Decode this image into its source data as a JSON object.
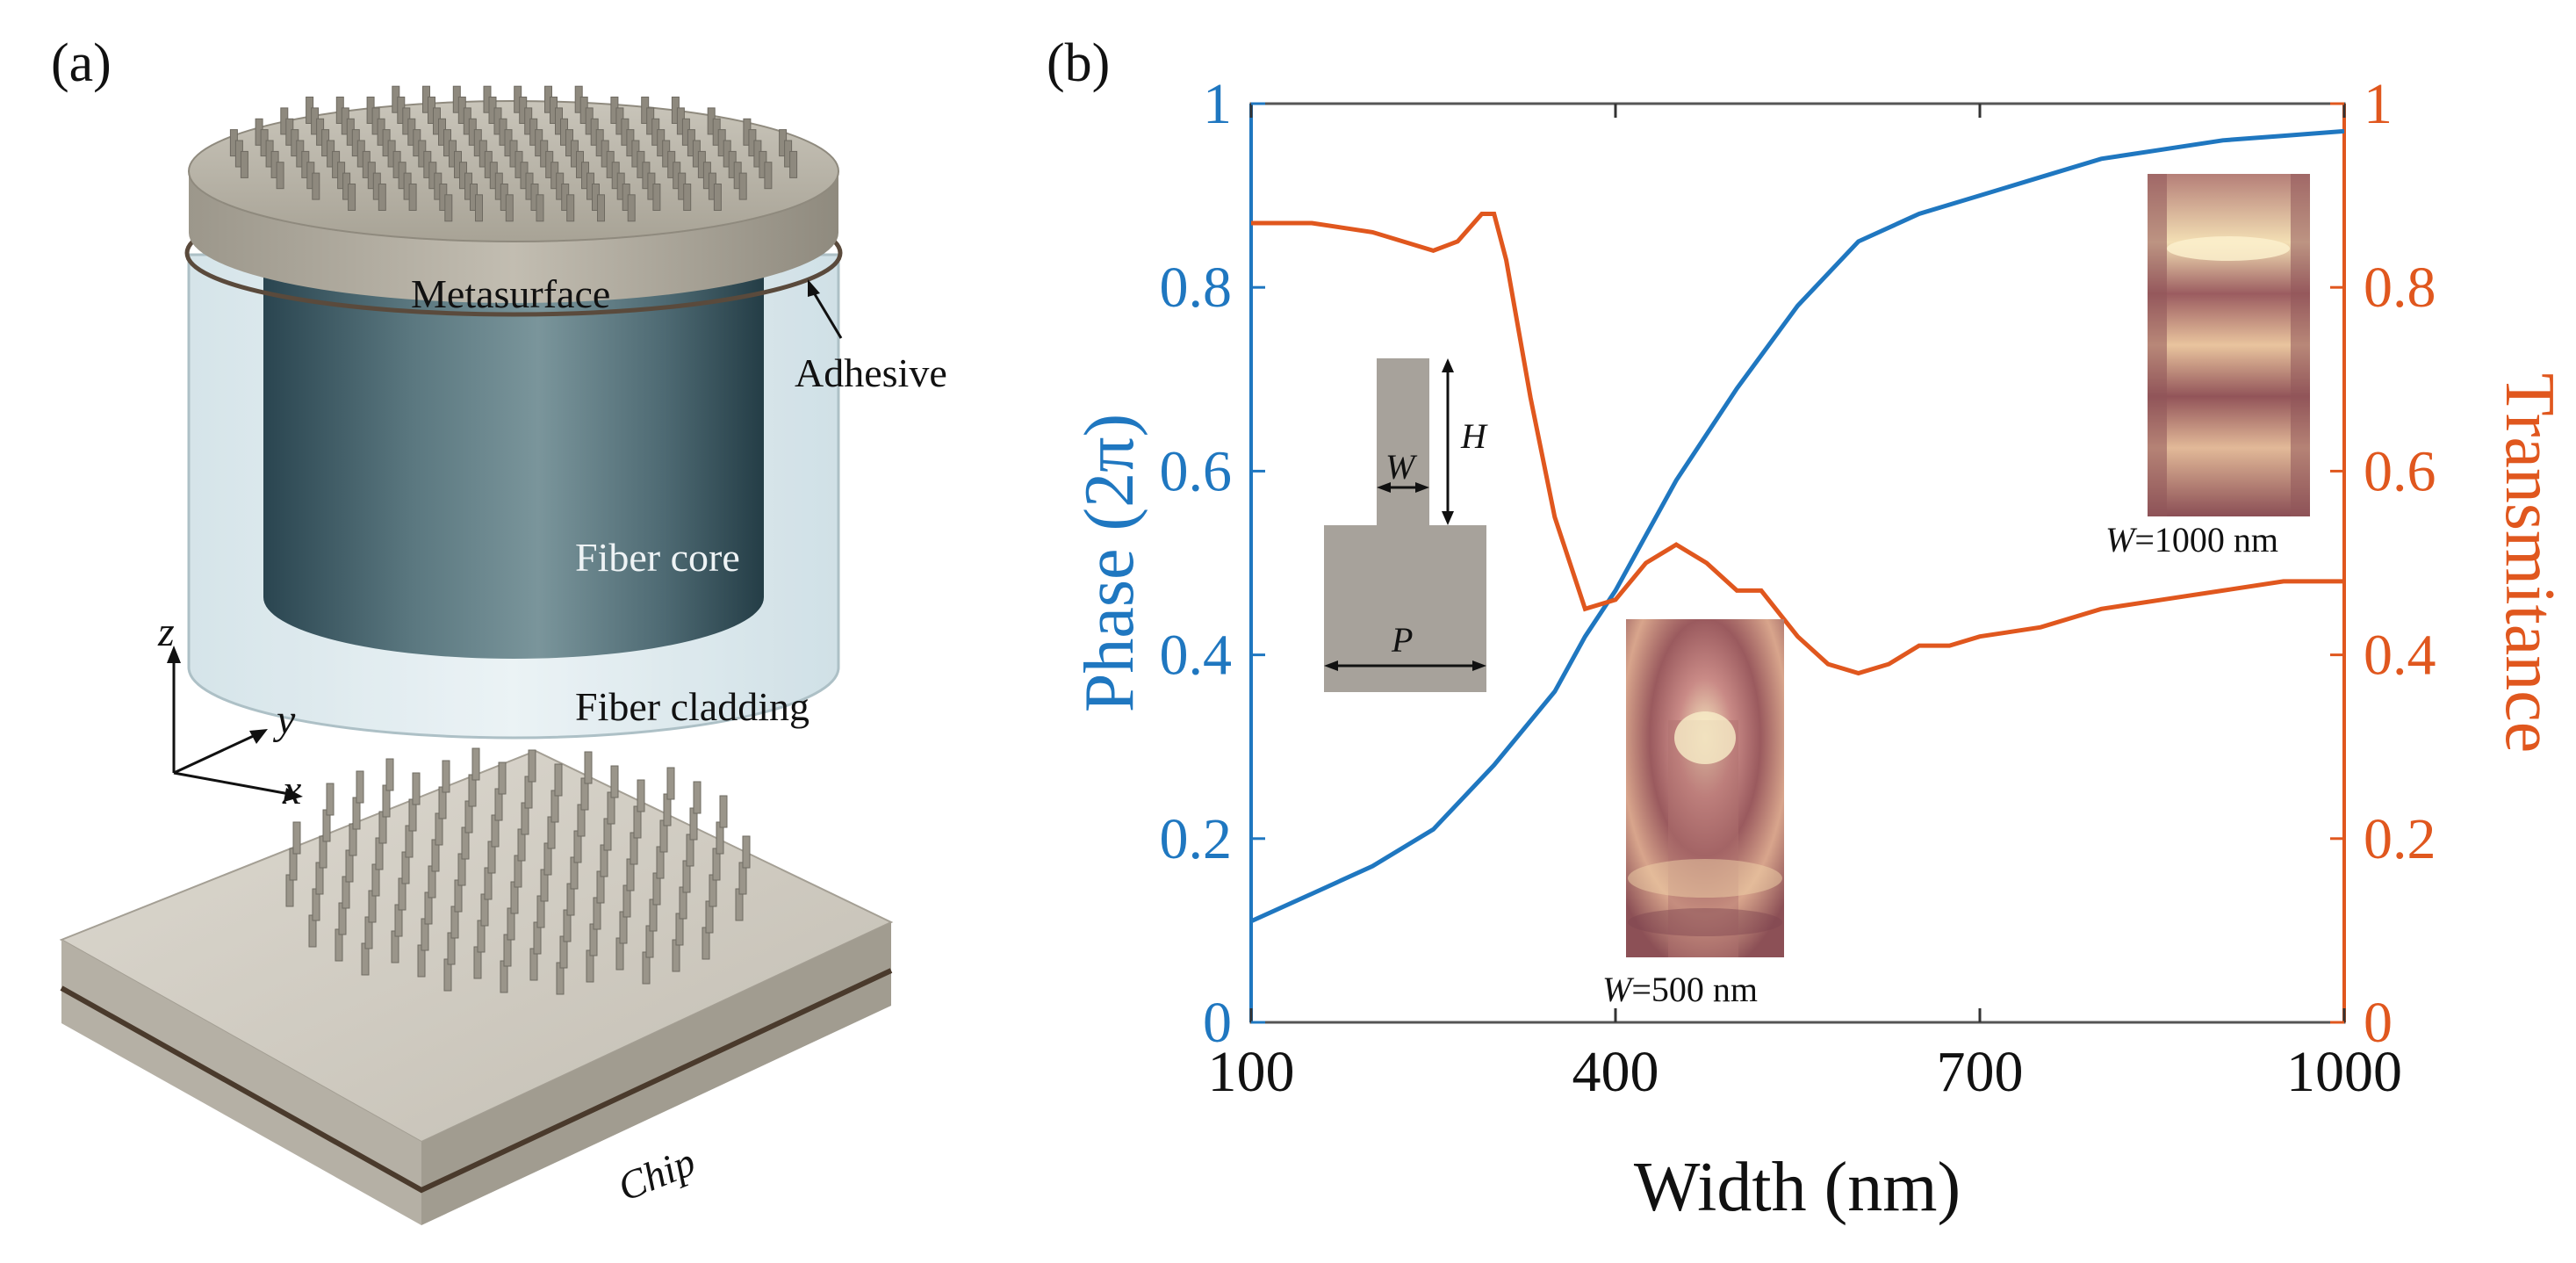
{
  "panel_a": {
    "label": "(a)",
    "metasurface_label": "Metasurface",
    "adhesive_label": "Adhesive",
    "fiber_core_label": "Fiber core",
    "fiber_cladding_label": "Fiber cladding",
    "chip_label": "Chip",
    "axes": {
      "z": "z",
      "y": "y",
      "x": "x"
    }
  },
  "panel_b": {
    "label": "(b)",
    "inset_schematic": {
      "w_label": "W",
      "h_label": "H",
      "p_label": "P"
    },
    "inset_500": {
      "label_italic": "W",
      "label_rest": "=500 nm"
    },
    "inset_1000": {
      "label_italic": "W",
      "label_rest": "=1000 nm"
    }
  },
  "colors": {
    "phase": "#1f77c0",
    "transmittance": "#e0571e",
    "axis": "#333333",
    "inset_bg": "#a7a29b"
  },
  "chart_data": {
    "type": "line",
    "xlabel": "Width (nm)",
    "ylabel_left": "Phase (2π)",
    "ylabel_right": "Transmitance",
    "xlim": [
      100,
      1000
    ],
    "ylim_left": [
      0,
      1
    ],
    "ylim_right": [
      0,
      1
    ],
    "xticks": [
      100,
      400,
      700,
      1000
    ],
    "yticks_left": [
      0,
      0.2,
      0.4,
      0.6,
      0.8,
      1
    ],
    "yticks_right": [
      0,
      0.2,
      0.4,
      0.6,
      0.8,
      1
    ],
    "series": [
      {
        "name": "Phase (2π)",
        "axis": "left",
        "color": "#1f77c0",
        "x": [
          100,
          150,
          200,
          250,
          300,
          350,
          375,
          400,
          425,
          450,
          500,
          550,
          600,
          650,
          700,
          750,
          800,
          850,
          900,
          950,
          1000
        ],
        "values": [
          0.11,
          0.14,
          0.17,
          0.21,
          0.28,
          0.36,
          0.42,
          0.47,
          0.53,
          0.59,
          0.69,
          0.78,
          0.85,
          0.88,
          0.9,
          0.92,
          0.94,
          0.95,
          0.96,
          0.965,
          0.97
        ]
      },
      {
        "name": "Transmitance",
        "axis": "right",
        "color": "#e0571e",
        "x": [
          100,
          150,
          200,
          250,
          270,
          290,
          300,
          310,
          330,
          350,
          375,
          400,
          425,
          450,
          475,
          500,
          520,
          550,
          575,
          600,
          625,
          650,
          675,
          700,
          750,
          800,
          850,
          900,
          950,
          1000
        ],
        "values": [
          0.87,
          0.87,
          0.86,
          0.84,
          0.85,
          0.88,
          0.88,
          0.83,
          0.68,
          0.55,
          0.45,
          0.46,
          0.5,
          0.52,
          0.5,
          0.47,
          0.47,
          0.42,
          0.39,
          0.38,
          0.39,
          0.41,
          0.41,
          0.42,
          0.43,
          0.45,
          0.46,
          0.47,
          0.48,
          0.48
        ]
      }
    ]
  }
}
